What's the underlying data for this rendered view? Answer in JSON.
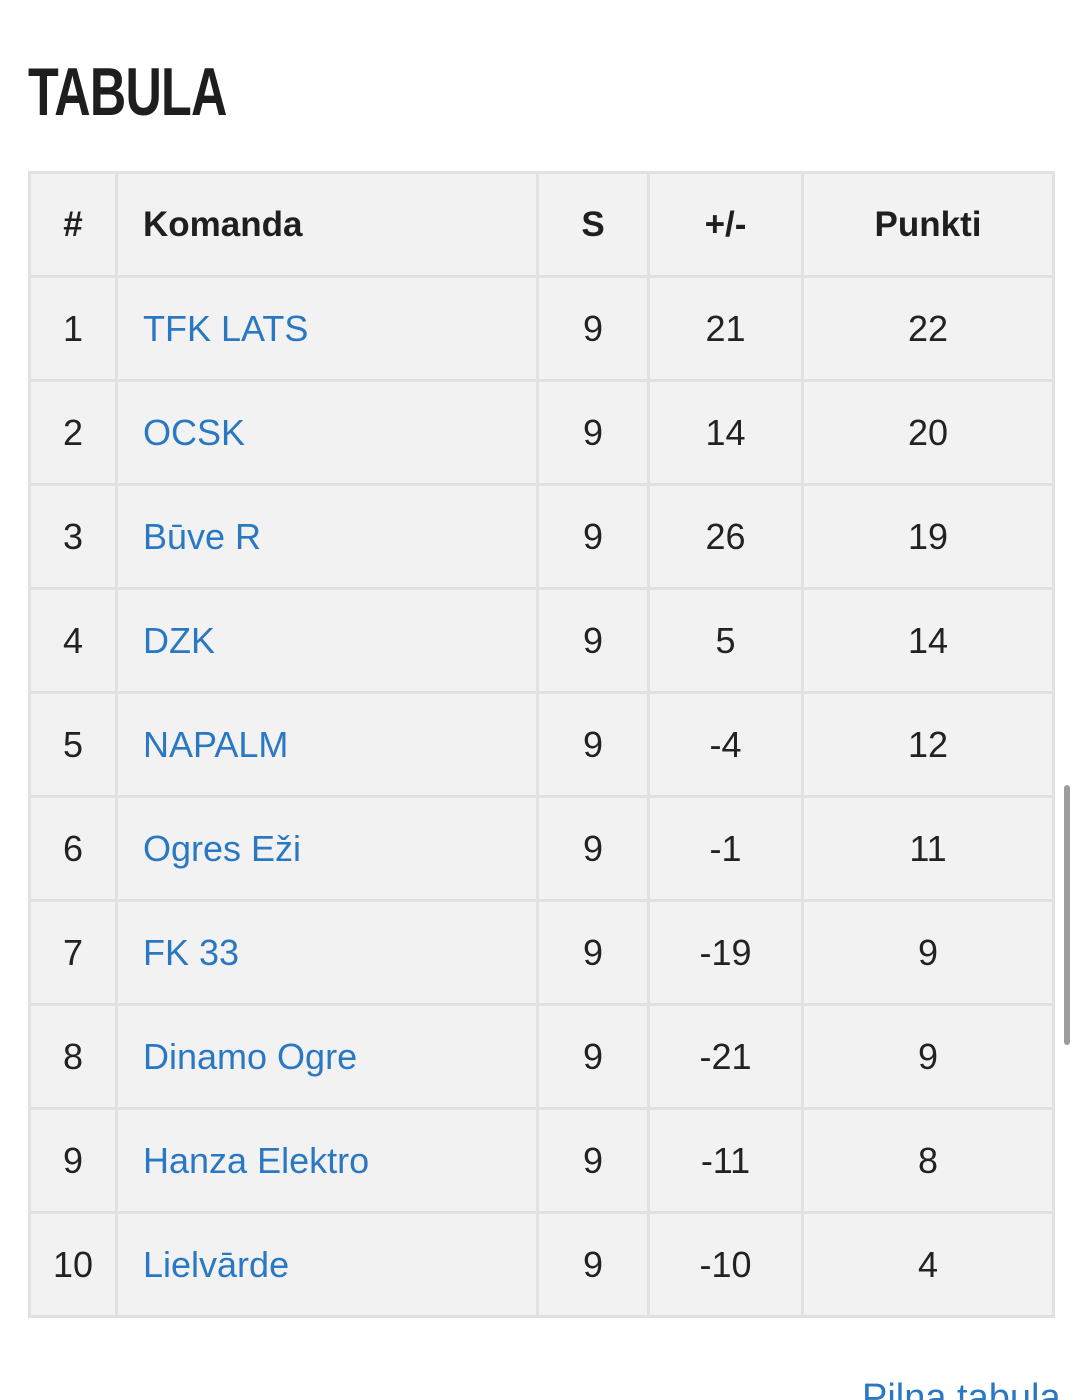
{
  "title": "TABULA",
  "table": {
    "headers": {
      "rank": "#",
      "team": "Komanda",
      "played": "S",
      "diff": "+/-",
      "points": "Punkti"
    },
    "rows": [
      {
        "rank": "1",
        "team": "TFK LATS",
        "played": "9",
        "diff": "21",
        "points": "22"
      },
      {
        "rank": "2",
        "team": "OCSK",
        "played": "9",
        "diff": "14",
        "points": "20"
      },
      {
        "rank": "3",
        "team": "Būve R",
        "played": "9",
        "diff": "26",
        "points": "19"
      },
      {
        "rank": "4",
        "team": "DZK",
        "played": "9",
        "diff": "5",
        "points": "14"
      },
      {
        "rank": "5",
        "team": "NAPALM",
        "played": "9",
        "diff": "-4",
        "points": "12"
      },
      {
        "rank": "6",
        "team": "Ogres Eži",
        "played": "9",
        "diff": "-1",
        "points": "11"
      },
      {
        "rank": "7",
        "team": "FK 33",
        "played": "9",
        "diff": "-19",
        "points": "9"
      },
      {
        "rank": "8",
        "team": "Dinamo Ogre",
        "played": "9",
        "diff": "-21",
        "points": "9"
      },
      {
        "rank": "9",
        "team": "Hanza Elektro",
        "played": "9",
        "diff": "-11",
        "points": "8"
      },
      {
        "rank": "10",
        "team": "Lielvārde",
        "played": "9",
        "diff": "-10",
        "points": "4"
      }
    ]
  },
  "footer": {
    "more_link": "Pilna tabula"
  },
  "colors": {
    "link": "#2a78c2",
    "table_bg": "#f2f2f2",
    "border": "#e1e1e1",
    "text": "#222222"
  }
}
